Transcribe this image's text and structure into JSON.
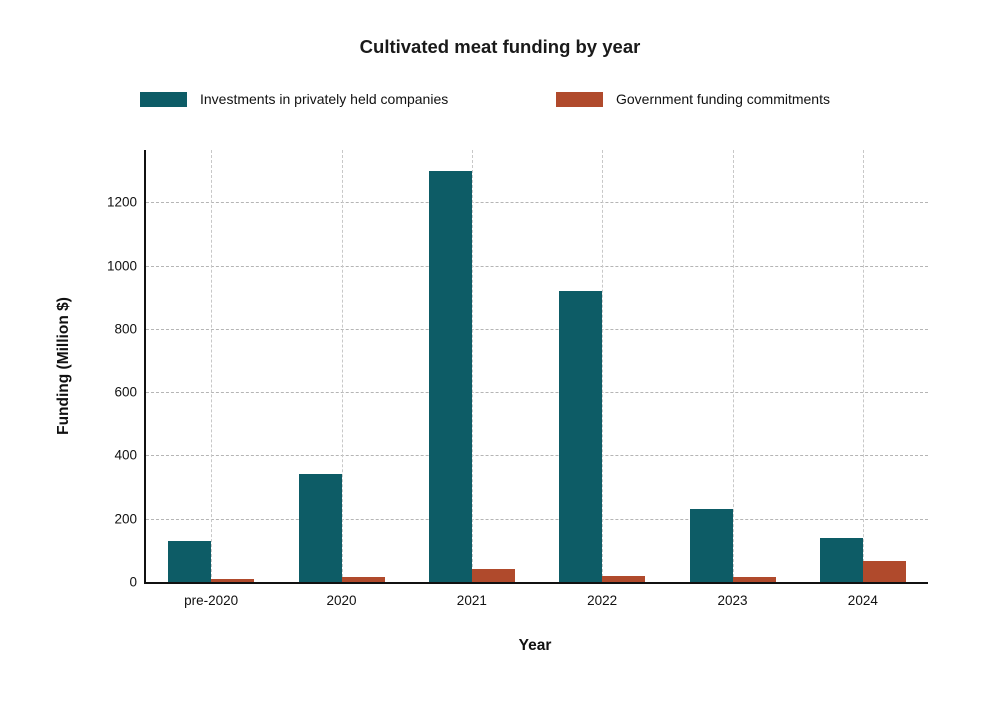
{
  "chart_data": {
    "type": "bar",
    "title": "Cultivated meat funding by year",
    "xlabel": "Year",
    "ylabel": "Funding (Million $)",
    "categories": [
      "pre-2020",
      "2020",
      "2021",
      "2022",
      "2023",
      "2024"
    ],
    "series": [
      {
        "name": "Investments in privately held companies",
        "color": "#0d5c66",
        "values": [
          130,
          340,
          1300,
          920,
          230,
          140
        ]
      },
      {
        "name": "Government funding commitments",
        "color": "#b04a2c",
        "values": [
          8,
          15,
          40,
          20,
          15,
          65
        ]
      }
    ],
    "yticks": [
      0,
      200,
      400,
      600,
      800,
      1000,
      1200
    ],
    "ylim": [
      0,
      1365
    ],
    "grid": true,
    "legend_position": "top",
    "background": "#ffffff",
    "axis_color": "#111111"
  }
}
